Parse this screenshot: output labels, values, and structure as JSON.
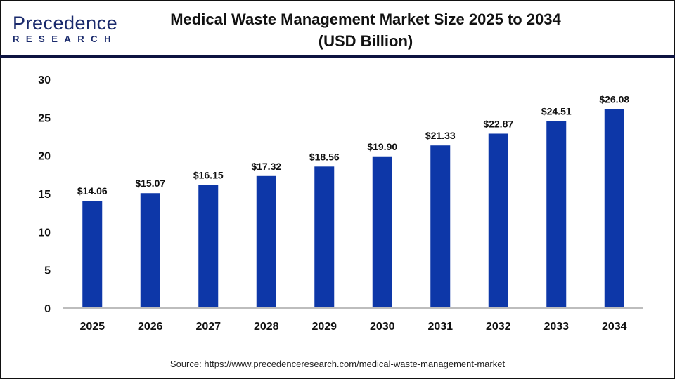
{
  "logo": {
    "line1": "Precedence",
    "line2": "RESEARCH"
  },
  "chart_data": {
    "type": "bar",
    "title": "Medical Waste Management Market Size 2025 to 2034",
    "subtitle": "(USD Billion)",
    "categories": [
      "2025",
      "2026",
      "2027",
      "2028",
      "2029",
      "2030",
      "2031",
      "2032",
      "2033",
      "2034"
    ],
    "values": [
      14.06,
      15.07,
      16.15,
      17.32,
      18.56,
      19.9,
      21.33,
      22.87,
      24.51,
      26.08
    ],
    "data_labels": [
      "$14.06",
      "$15.07",
      "$16.15",
      "$17.32",
      "$18.56",
      "$19.90",
      "$21.33",
      "$22.87",
      "$24.51",
      "$26.08"
    ],
    "ylim": [
      0,
      30
    ],
    "yticks": [
      0,
      5,
      10,
      15,
      20,
      25,
      30
    ],
    "grid": false,
    "bar_color": "#0d37a8",
    "xlabel": "",
    "ylabel": ""
  },
  "source": "Source: https://www.precedenceresearch.com/medical-waste-management-market"
}
